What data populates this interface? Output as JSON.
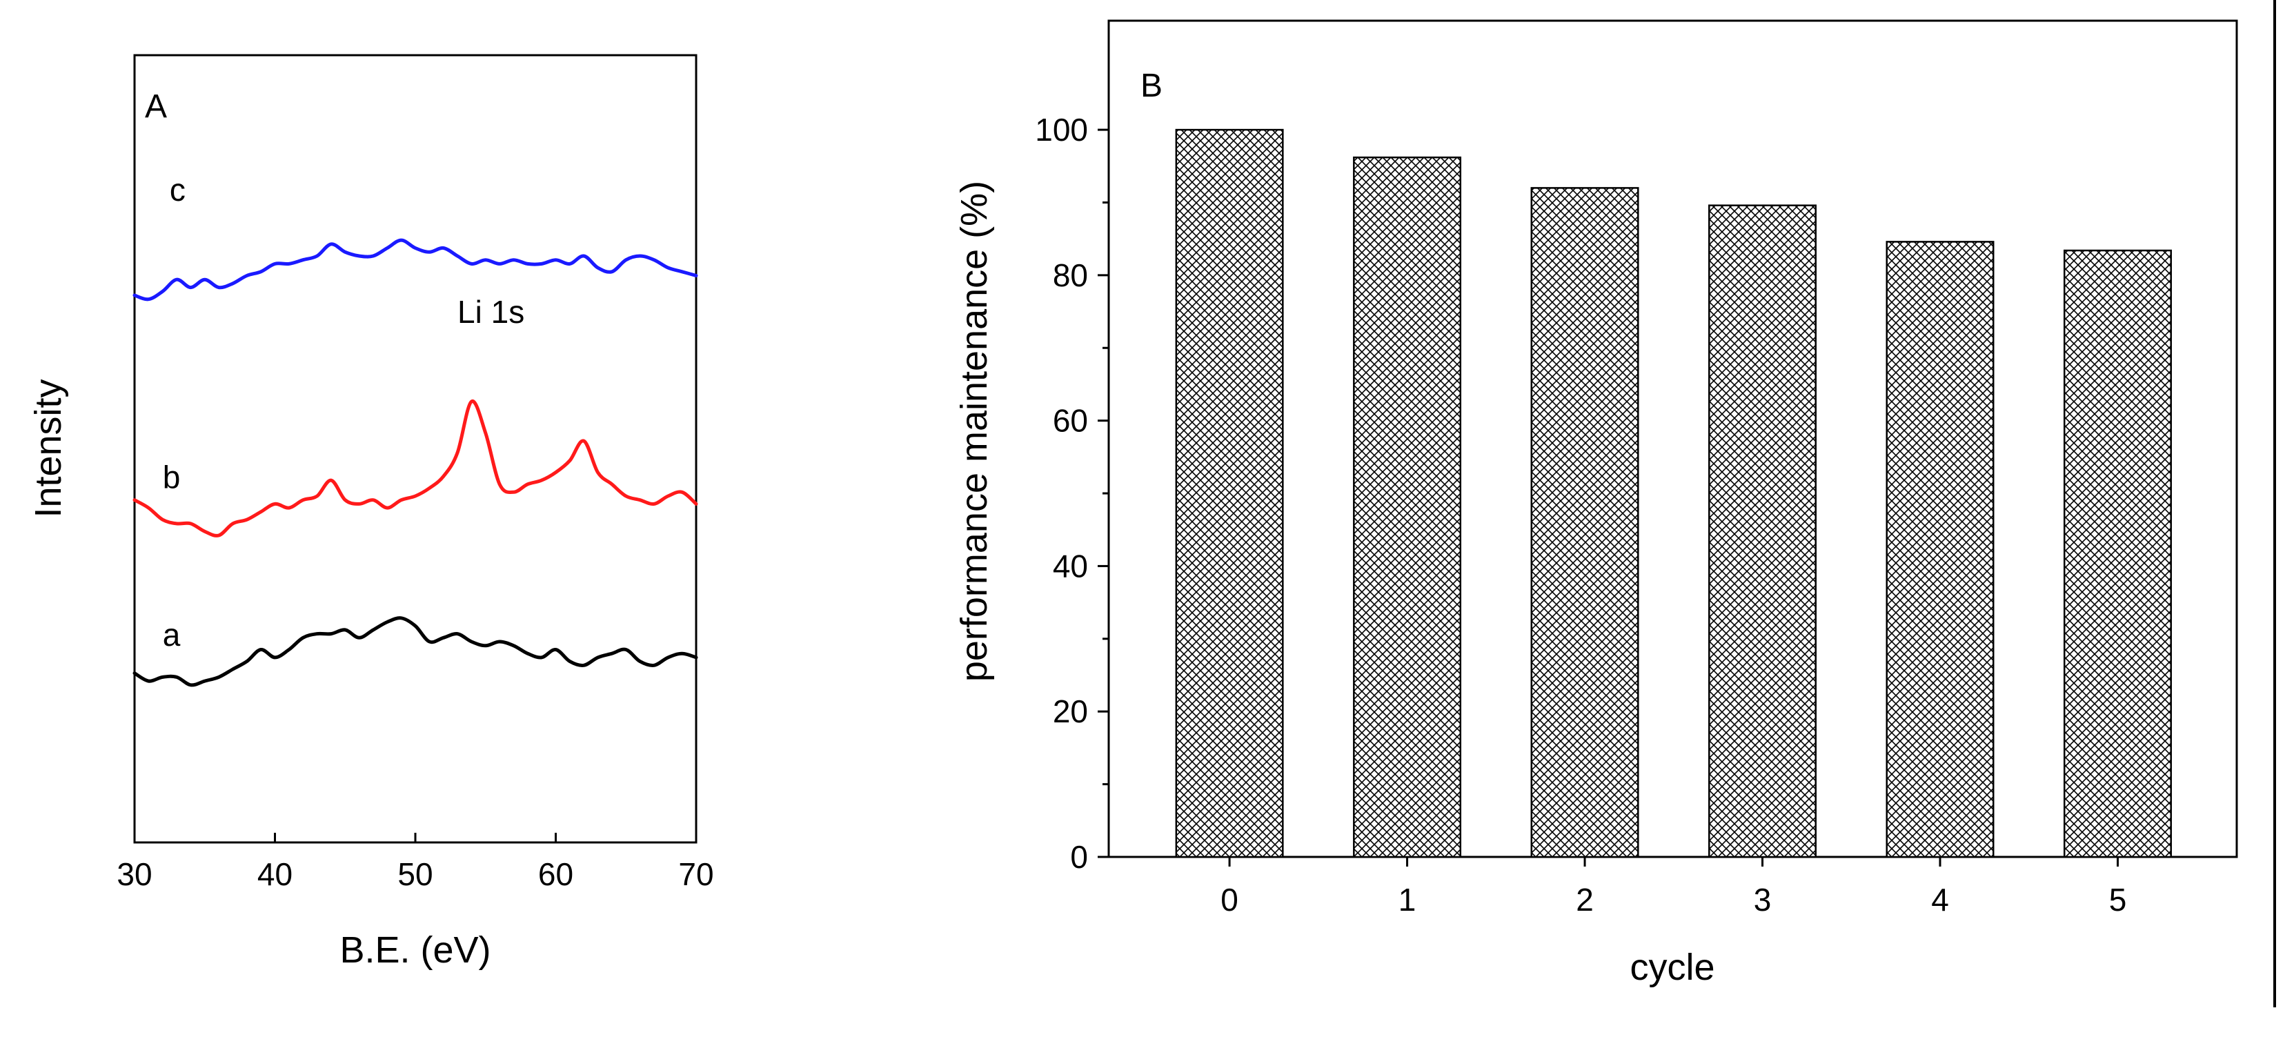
{
  "chart_data": [
    {
      "panel": "A",
      "type": "line",
      "xlabel": "B.E. (eV)",
      "ylabel": "Intensity",
      "xlim": [
        30,
        70
      ],
      "xticks": [
        30,
        40,
        50,
        60,
        70
      ],
      "xtick_labels": [
        "30",
        "40",
        "50",
        "60",
        "70"
      ],
      "ylim": [
        0,
        100
      ],
      "yticks_shown": false,
      "annotation": {
        "text": "Li 1s",
        "x": 53,
        "y": 66
      },
      "series": [
        {
          "name": "c",
          "color": "#1a1aff",
          "label_pos": {
            "x": 32.5,
            "y": 81.5
          },
          "x": [
            30,
            31,
            32,
            33,
            34,
            35,
            36,
            37,
            38,
            39,
            40,
            41,
            42,
            43,
            44,
            45,
            46,
            47,
            48,
            49,
            50,
            51,
            52,
            53,
            54,
            55,
            56,
            57,
            58,
            59,
            60,
            61,
            62,
            63,
            64,
            65,
            66,
            67,
            68,
            69,
            70
          ],
          "y": [
            69.5,
            69,
            70,
            71.5,
            70.5,
            71.5,
            70.5,
            71,
            72,
            72.5,
            73.5,
            73.5,
            74,
            74.5,
            76,
            75,
            74.5,
            74.5,
            75.5,
            76.5,
            75.5,
            75,
            75.5,
            74.5,
            73.5,
            74,
            73.5,
            74,
            73.5,
            73.5,
            74,
            73.5,
            74.5,
            73,
            72.5,
            74,
            74.5,
            74,
            73,
            72.5,
            72
          ]
        },
        {
          "name": "b",
          "color": "#ff1a1a",
          "label_pos": {
            "x": 32,
            "y": 45
          },
          "x": [
            30,
            31,
            32,
            33,
            34,
            35,
            36,
            37,
            38,
            39,
            40,
            41,
            42,
            43,
            44,
            45,
            46,
            47,
            48,
            49,
            50,
            51,
            52,
            53,
            54,
            55,
            56,
            57,
            58,
            59,
            60,
            61,
            62,
            63,
            64,
            65,
            66,
            67,
            68,
            69,
            70
          ],
          "y": [
            43.5,
            42.5,
            41,
            40.5,
            40.5,
            39.5,
            39,
            40.5,
            41,
            42,
            43,
            42.5,
            43.5,
            44,
            46,
            43.5,
            43,
            43.5,
            42.5,
            43.5,
            44,
            45,
            46.5,
            49.5,
            56,
            52,
            45.5,
            44.5,
            45.5,
            46,
            47,
            48.5,
            51,
            47,
            45.5,
            44,
            43.5,
            43,
            44,
            44.5,
            43
          ]
        },
        {
          "name": "a",
          "color": "#000000",
          "label_pos": {
            "x": 32,
            "y": 25
          },
          "x": [
            30,
            31,
            32,
            33,
            34,
            35,
            36,
            37,
            38,
            39,
            40,
            41,
            42,
            43,
            44,
            45,
            46,
            47,
            48,
            49,
            50,
            51,
            52,
            53,
            54,
            55,
            56,
            57,
            58,
            59,
            60,
            61,
            62,
            63,
            64,
            65,
            66,
            67,
            68,
            69,
            70
          ],
          "y": [
            21.5,
            20.5,
            21,
            21,
            20,
            20.5,
            21,
            22,
            23,
            24.5,
            23.5,
            24.5,
            26,
            26.5,
            26.5,
            27,
            26,
            27,
            28,
            28.5,
            27.5,
            25.5,
            26,
            26.5,
            25.5,
            25,
            25.5,
            25,
            24,
            23.5,
            24.5,
            23,
            22.5,
            23.5,
            24,
            24.5,
            23,
            22.5,
            23.5,
            24,
            23.5
          ]
        }
      ]
    },
    {
      "panel": "B",
      "type": "bar",
      "categories": [
        "0",
        "1",
        "2",
        "3",
        "4",
        "5"
      ],
      "values": [
        100,
        96.2,
        92,
        89.6,
        84.6,
        83.4
      ],
      "xlabel": "cycle",
      "ylabel": "performance maintenance (%)",
      "ylim": [
        0,
        115
      ],
      "yticks": [
        0,
        20,
        40,
        60,
        80,
        100
      ],
      "ytick_labels": [
        "0",
        "20",
        "40",
        "60",
        "80",
        "100"
      ],
      "bar_fill": "crosshatch"
    }
  ]
}
